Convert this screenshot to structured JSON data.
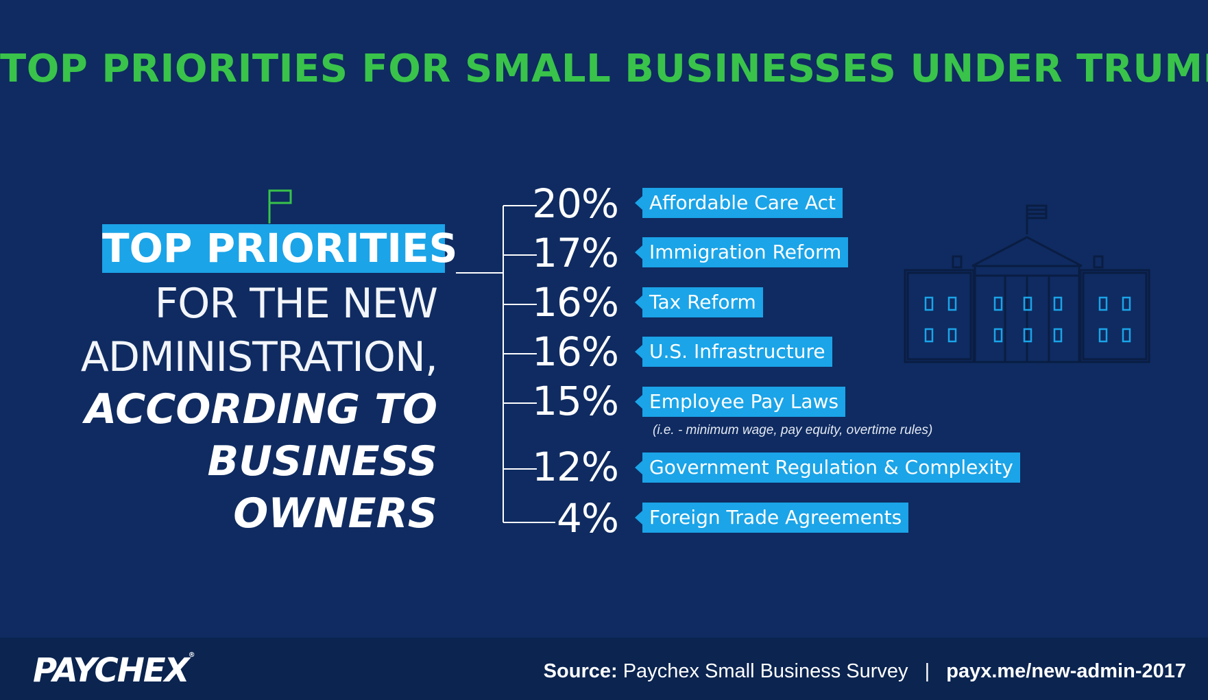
{
  "title": "TOP PRIORITIES FOR SMALL BUSINESSES UNDER TRUMP",
  "headline": {
    "highlight": "TOP PRIORITIES",
    "line1": "FOR THE NEW",
    "line2": "ADMINISTRATION,",
    "line3": "ACCORDING TO",
    "line4": "BUSINESS",
    "line5": "OWNERS"
  },
  "priorities": [
    {
      "percent": "20%",
      "label": "Affordable Care Act"
    },
    {
      "percent": "17%",
      "label": "Immigration Reform"
    },
    {
      "percent": "16%",
      "label": "Tax Reform"
    },
    {
      "percent": "16%",
      "label": "U.S. Infrastructure"
    },
    {
      "percent": "15%",
      "label": "Employee Pay Laws"
    },
    {
      "percent": "12%",
      "label": "Government Regulation & Complexity"
    },
    {
      "percent": "4%",
      "label": "Foreign Trade Agreements"
    }
  ],
  "note": "(i.e. - minimum wage, pay equity, overtime rules)",
  "footer": {
    "logo": "PAYCHEX",
    "logo_mark": "®",
    "source_label": "Source:",
    "source_text": "Paychex Small Business Survey",
    "separator": "|",
    "url": "payx.me/new-admin-2017"
  },
  "colors": {
    "background": "#0f2b61",
    "title_green": "#39c34a",
    "accent_blue": "#1ba4e8",
    "footer": "#0b2450"
  },
  "icons": [
    "flag-icon",
    "white-house-icon"
  ]
}
